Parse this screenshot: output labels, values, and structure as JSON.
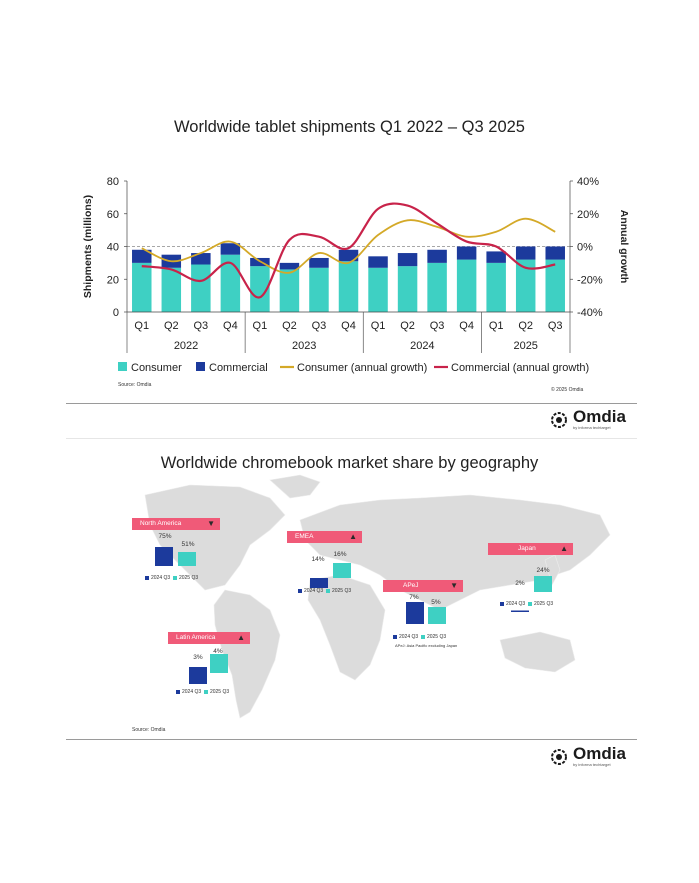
{
  "colors": {
    "consumer": "#3ed0c3",
    "commercial": "#1c3a9c",
    "consumer_growth": "#d4a928",
    "commercial_growth": "#c8234a",
    "banner": "#f05a78",
    "map": "#d9d9d9"
  },
  "chart_data": {
    "type": "bar",
    "title": "Worldwide tablet shipments Q1 2022 – Q3 2025",
    "categories": [
      "Q1",
      "Q2",
      "Q3",
      "Q4",
      "Q1",
      "Q2",
      "Q3",
      "Q4",
      "Q1",
      "Q2",
      "Q3",
      "Q4",
      "Q1",
      "Q2",
      "Q3"
    ],
    "years": [
      {
        "label": "2022",
        "start": 0,
        "end": 3
      },
      {
        "label": "2023",
        "start": 4,
        "end": 7
      },
      {
        "label": "2024",
        "start": 8,
        "end": 11
      },
      {
        "label": "2025",
        "start": 12,
        "end": 14
      }
    ],
    "series": [
      {
        "name": "Consumer",
        "kind": "bar",
        "axis": "left",
        "values": [
          30,
          27,
          29,
          35,
          28,
          26,
          27,
          31,
          27,
          28,
          30,
          32,
          30,
          32,
          32
        ]
      },
      {
        "name": "Commercial",
        "kind": "bar",
        "axis": "left",
        "values": [
          8,
          8,
          7,
          7,
          5,
          4,
          6,
          7,
          7,
          8,
          8,
          8,
          7,
          8,
          8
        ]
      },
      {
        "name": "Consumer (annual growth)",
        "kind": "line",
        "axis": "right",
        "values": [
          -1,
          -9,
          -4,
          3,
          -9,
          -16,
          -4,
          -10,
          7,
          16,
          12,
          6,
          9,
          17,
          9
        ]
      },
      {
        "name": "Commercial (annual growth)",
        "kind": "line",
        "axis": "right",
        "values": [
          -12,
          -14,
          -21,
          -10,
          -31,
          4,
          6,
          -1,
          23,
          25,
          14,
          3,
          0,
          -13,
          -11
        ]
      }
    ],
    "ylabel": "Shipments (millions)",
    "y2label": "Annual growth",
    "ylim": [
      0,
      80
    ],
    "yticks": [
      "0",
      "20",
      "40",
      "60",
      "80"
    ],
    "y2lim": [
      -40,
      40
    ],
    "y2ticks": [
      "-40%",
      "-20%",
      "0%",
      "20%",
      "40%"
    ],
    "reference_line": 40,
    "legend_position": "bottom",
    "source": "Source: Omdia",
    "copyright": "© 2025 Omdia"
  },
  "logo": {
    "name": "Omdia",
    "tagline": "by informa techtarget"
  },
  "map_section": {
    "title": "Worldwide chromebook market share by geography",
    "regions": [
      {
        "name": "North America",
        "trend": "down",
        "v2024": "75%",
        "v2025": "51%"
      },
      {
        "name": "EMEA",
        "trend": "up",
        "v2024": "14%",
        "v2025": "16%"
      },
      {
        "name": "Japan",
        "trend": "up",
        "v2024": "2%",
        "v2025": "24%"
      },
      {
        "name": "APeJ",
        "trend": "down",
        "v2024": "7%",
        "v2025": "5%",
        "note": "APeJ: Asia Pacific excluding Japan"
      },
      {
        "name": "Latin America",
        "trend": "up",
        "v2024": "3%",
        "v2025": "4%"
      }
    ],
    "legend": {
      "a": "2024 Q3",
      "b": "2025 Q3"
    },
    "source": "Source: Omdia"
  }
}
